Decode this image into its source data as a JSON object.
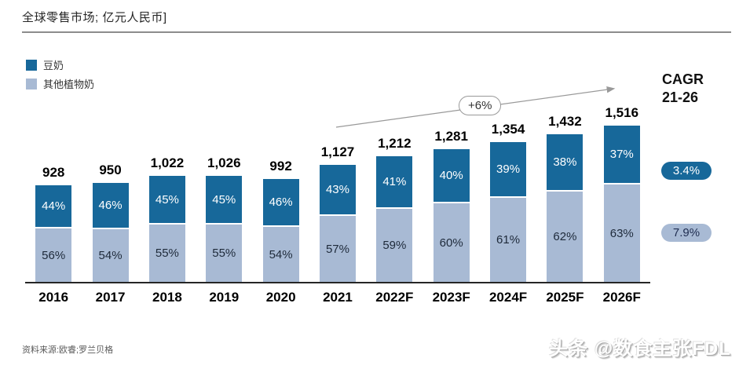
{
  "header": {
    "title": "全球零售市场; 亿元人民币]"
  },
  "legend": [
    {
      "label": "豆奶",
      "color": "#17689a"
    },
    {
      "label": "其他植物奶",
      "color": "#a8bad4"
    }
  ],
  "cagr": {
    "line1": "CAGR",
    "line2": "21-26",
    "items": [
      {
        "series": "豆奶",
        "value": "3.4%",
        "color": "#17689a",
        "text_color": "#ffffff"
      },
      {
        "series": "其他植物奶",
        "value": "7.9%",
        "color": "#a8bad4",
        "text_color": "#1f2d50"
      }
    ]
  },
  "annotation": {
    "label": "+6%"
  },
  "chart_data": {
    "type": "bar",
    "stacked": true,
    "title": "全球零售市场; 亿元人民币]",
    "unit": "亿元人民币",
    "categories": [
      "2016",
      "2017",
      "2018",
      "2019",
      "2020",
      "2021",
      "2022F",
      "2023F",
      "2024F",
      "2025F",
      "2026F"
    ],
    "totals": [
      928,
      950,
      1022,
      1026,
      992,
      1127,
      1212,
      1281,
      1354,
      1432,
      1516
    ],
    "total_labels": [
      "928",
      "950",
      "1,022",
      "1,026",
      "992",
      "1,127",
      "1,212",
      "1,281",
      "1,354",
      "1,432",
      "1,516"
    ],
    "series": [
      {
        "name": "豆奶",
        "color": "#17689a",
        "label_color": "#ffffff",
        "position": "top",
        "share_pct": [
          44,
          46,
          45,
          45,
          46,
          43,
          41,
          40,
          39,
          38,
          37
        ]
      },
      {
        "name": "其他植物奶",
        "color": "#a8bad4",
        "label_color": "#1e2a3a",
        "position": "bottom",
        "share_pct": [
          56,
          54,
          55,
          55,
          54,
          57,
          59,
          60,
          61,
          62,
          63
        ]
      }
    ],
    "annotations": [
      {
        "text": "+6%",
        "kind": "growth-arrow",
        "from_category": "2021",
        "to_category": "2026F"
      }
    ],
    "cagr_21_26": {
      "豆奶": "3.4%",
      "其他植物奶": "7.9%"
    },
    "legend_position": "top-left",
    "gridlines": false,
    "y_axis_visible": false
  },
  "footer": {
    "source": "资料来源:欧睿;罗兰贝格",
    "watermark": "头条 @数食主张FDL"
  }
}
